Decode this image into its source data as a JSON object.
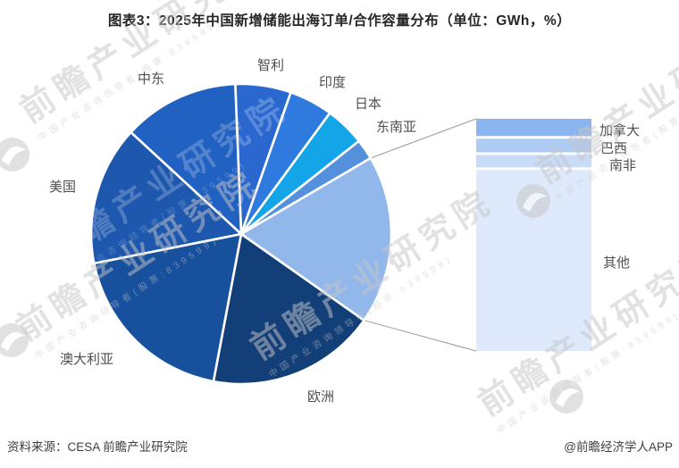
{
  "header": {
    "title": "图表3：2025年中国新增储能出海订单/合作容量分布（单位：GWh，%）"
  },
  "footer": {
    "source": "资料来源：CESA 前瞻产业研究院",
    "brand": "@前瞻经济学人APP"
  },
  "watermark": {
    "text": "前瞻产业研究院",
    "subtext": "中国产业咨询领导者(股票:839599)"
  },
  "chart_data": {
    "type": "pie",
    "title": "图表3：2025年中国新增储能出海订单/合作容量分布（单位：GWh，%）",
    "unit": "GWh，%",
    "legend_position": "none",
    "data_labels_shown": false,
    "start_angle_deg": -2.3,
    "slices": [
      {
        "label": "智利",
        "value": 6.0,
        "color": "#2a68cf"
      },
      {
        "label": "印度",
        "value": 4.7,
        "color": "#2f7ade"
      },
      {
        "label": "日本",
        "value": 4.3,
        "color": "#14a5e8"
      },
      {
        "label": "东南亚",
        "value": 2.2,
        "color": "#5590dd"
      },
      {
        "label": "",
        "value": 18.2,
        "color": "#92b7eb",
        "breakout": true
      },
      {
        "label": "欧洲",
        "value": 18.2,
        "color": "#133f79"
      },
      {
        "label": "澳大利亚",
        "value": 18.9,
        "color": "#17509d"
      },
      {
        "label": "美国",
        "value": 15.0,
        "color": "#1d57ae"
      },
      {
        "label": "中东",
        "value": 12.5,
        "color": "#2161c1"
      }
    ],
    "breakout_bar": {
      "connects_to_slice_index": 4,
      "segments": [
        {
          "label": "加拿大",
          "value": 1.4,
          "color": "#8ab5ef"
        },
        {
          "label": "巴西",
          "value": 1.1,
          "color": "#adcbf3"
        },
        {
          "label": "南非",
          "value": 1.0,
          "color": "#c8dbf7"
        },
        {
          "label": "其他",
          "value": 14.7,
          "color": "#deeafb"
        }
      ]
    }
  }
}
